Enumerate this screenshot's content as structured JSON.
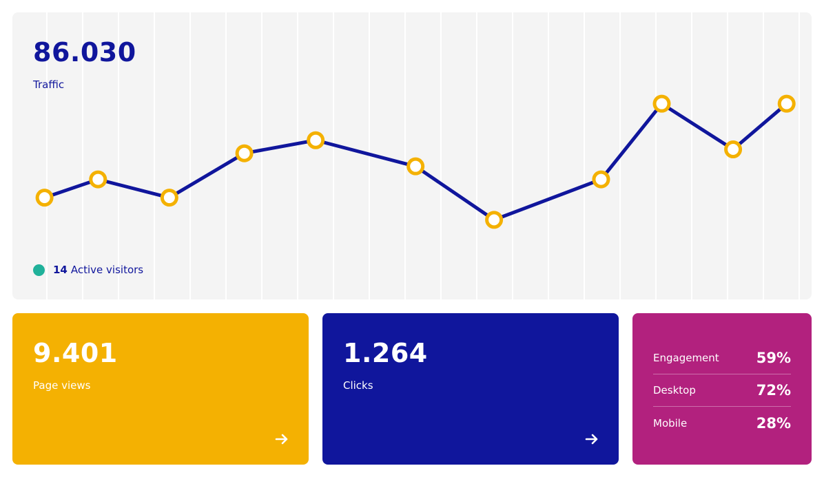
{
  "traffic": {
    "value": "86.030",
    "label": "Traffic",
    "active_count": "14",
    "active_label": "Active visitors"
  },
  "chart_data": {
    "type": "line",
    "series": [
      {
        "values": [
          38,
          52,
          38,
          72,
          82,
          62,
          21,
          52,
          110,
          75,
          110
        ]
      }
    ],
    "x_positions": [
      0,
      1.5,
      3.5,
      5.6,
      7.6,
      10.4,
      12.6,
      15.6,
      17.3,
      19.3,
      20.8
    ],
    "ylim": [
      -40,
      180
    ],
    "xlim": [
      -0.9,
      21.5
    ],
    "grid": true,
    "colors": {
      "line": "#10169c",
      "marker": "#f4b102",
      "marker_fill": "#ffffff",
      "grid": "#ffffff"
    }
  },
  "pageviews": {
    "value": "9.401",
    "label": "Page views",
    "arrow_icon": "arrow-right-icon"
  },
  "clicks": {
    "value": "1.264",
    "label": "Clicks",
    "arrow_icon": "arrow-right-icon"
  },
  "devices": {
    "rows": [
      {
        "name": "Engagement",
        "pct": "59%"
      },
      {
        "name": "Desktop",
        "pct": "72%"
      },
      {
        "name": "Mobile",
        "pct": "28%"
      }
    ]
  },
  "colors": {
    "navy": "#10169c",
    "yellow": "#f4b102",
    "magenta": "#b2217e",
    "teal": "#20b19a",
    "card_bg": "#f4f4f4"
  }
}
